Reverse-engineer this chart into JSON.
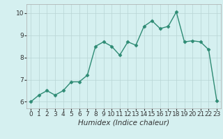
{
  "x": [
    0,
    1,
    2,
    3,
    4,
    5,
    6,
    7,
    8,
    9,
    10,
    11,
    12,
    13,
    14,
    15,
    16,
    17,
    18,
    19,
    20,
    21,
    22,
    23
  ],
  "y": [
    6.0,
    6.3,
    6.5,
    6.3,
    6.5,
    6.9,
    6.9,
    7.2,
    8.5,
    8.7,
    8.5,
    8.1,
    8.7,
    8.55,
    9.4,
    9.65,
    9.3,
    9.4,
    10.05,
    8.7,
    8.75,
    8.7,
    8.35,
    6.05
  ],
  "line_color": "#2e8b74",
  "marker": "D",
  "marker_size": 2.5,
  "bg_color": "#d5f0f0",
  "grid_color": "#b8d4d4",
  "xlabel": "Humidex (Indice chaleur)",
  "ylim": [
    5.7,
    10.4
  ],
  "xlim": [
    -0.5,
    23.5
  ],
  "yticks": [
    6,
    7,
    8,
    9,
    10
  ],
  "xticks": [
    0,
    1,
    2,
    3,
    4,
    5,
    6,
    7,
    8,
    9,
    10,
    11,
    12,
    13,
    14,
    15,
    16,
    17,
    18,
    19,
    20,
    21,
    22,
    23
  ],
  "axis_color": "#333333",
  "tick_fontsize": 6.5,
  "label_fontsize": 7.5,
  "linewidth": 1.0
}
